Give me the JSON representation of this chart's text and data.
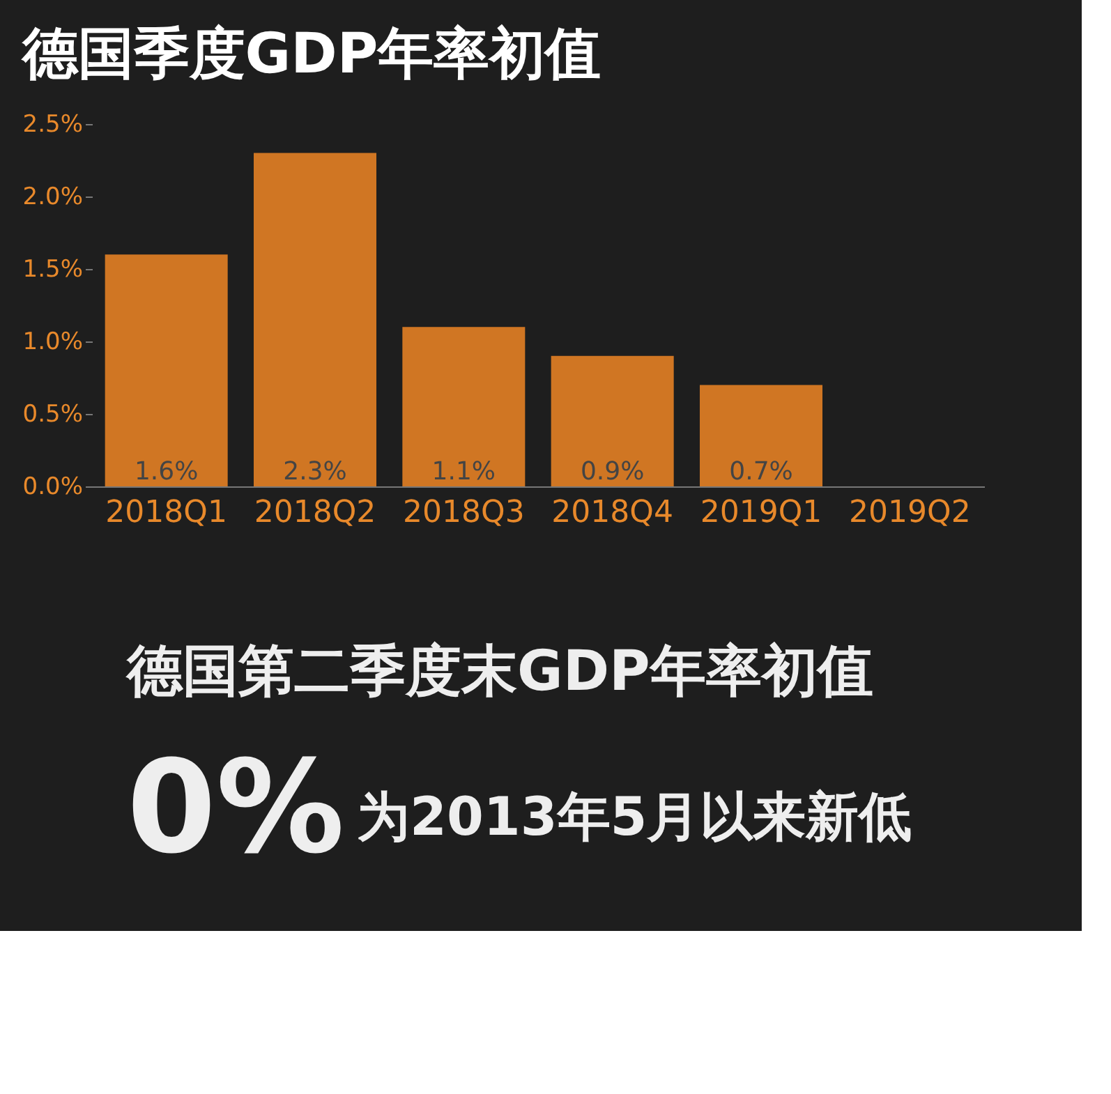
{
  "chart_data": {
    "type": "bar",
    "title": "德国季度GDP年率初值",
    "categories": [
      "2018Q1",
      "2018Q2",
      "2018Q3",
      "2018Q4",
      "2019Q1",
      "2019Q2"
    ],
    "values": [
      1.6,
      2.3,
      1.1,
      0.9,
      0.7,
      0
    ],
    "color": "#d07623",
    "value_labels": [
      "1.6%",
      "2.3%",
      "1.1%",
      "0.9%",
      "0.7%",
      null
    ],
    "ylim": [
      0,
      2.5
    ],
    "yticks": [
      {
        "value": 0,
        "label": "0.0%"
      },
      {
        "value": 0.5,
        "label": "0.5%"
      },
      {
        "value": 1,
        "label": "1.0%"
      },
      {
        "value": 1.5,
        "label": "1.5%"
      },
      {
        "value": 2,
        "label": "2.0%"
      },
      {
        "value": 2.5,
        "label": "2.5%"
      }
    ],
    "grid": false,
    "annotations": [
      "德国第二季度末GDP年率初值",
      "0%",
      "为2013年5月以来新低"
    ]
  }
}
